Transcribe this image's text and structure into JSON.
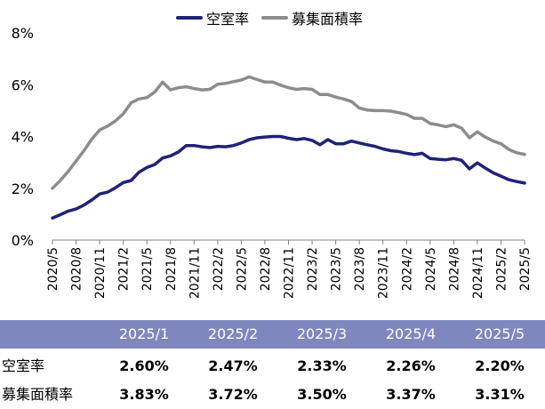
{
  "chart_data": {
    "type": "line",
    "title": "",
    "xlabel": "",
    "ylabel": "",
    "ylim": [
      0,
      8
    ],
    "y_ticks": [
      "0%",
      "2%",
      "4%",
      "6%",
      "8%"
    ],
    "grid": false,
    "legend_position": "top",
    "x_tick_labels": [
      "2020/5",
      "2020/8",
      "2020/11",
      "2021/2",
      "2021/5",
      "2021/8",
      "2021/11",
      "2022/2",
      "2022/5",
      "2022/8",
      "2022/11",
      "2023/2",
      "2023/5",
      "2023/8",
      "2023/11",
      "2024/2",
      "2024/5",
      "2024/8",
      "2024/11",
      "2025/2",
      "2025/5"
    ],
    "x": [
      "2020/5",
      "2020/6",
      "2020/7",
      "2020/8",
      "2020/9",
      "2020/10",
      "2020/11",
      "2020/12",
      "2021/1",
      "2021/2",
      "2021/3",
      "2021/4",
      "2021/5",
      "2021/6",
      "2021/7",
      "2021/8",
      "2021/9",
      "2021/10",
      "2021/11",
      "2021/12",
      "2022/1",
      "2022/2",
      "2022/3",
      "2022/4",
      "2022/5",
      "2022/6",
      "2022/7",
      "2022/8",
      "2022/9",
      "2022/10",
      "2022/11",
      "2022/12",
      "2023/1",
      "2023/2",
      "2023/3",
      "2023/4",
      "2023/5",
      "2023/6",
      "2023/7",
      "2023/8",
      "2023/9",
      "2023/10",
      "2023/11",
      "2023/12",
      "2024/1",
      "2024/2",
      "2024/3",
      "2024/4",
      "2024/5",
      "2024/6",
      "2024/7",
      "2024/8",
      "2024/9",
      "2024/10",
      "2024/11",
      "2024/12",
      "2025/1",
      "2025/2",
      "2025/3",
      "2025/4",
      "2025/5"
    ],
    "series": [
      {
        "name": "空室率",
        "color": "#1f2277",
        "values": [
          0.85,
          0.98,
          1.12,
          1.2,
          1.35,
          1.55,
          1.78,
          1.85,
          2.02,
          2.22,
          2.3,
          2.62,
          2.8,
          2.92,
          3.17,
          3.25,
          3.4,
          3.65,
          3.65,
          3.6,
          3.57,
          3.62,
          3.6,
          3.65,
          3.75,
          3.88,
          3.95,
          3.98,
          4.0,
          4.0,
          3.93,
          3.88,
          3.92,
          3.85,
          3.68,
          3.88,
          3.72,
          3.72,
          3.82,
          3.75,
          3.68,
          3.62,
          3.52,
          3.45,
          3.42,
          3.35,
          3.3,
          3.35,
          3.15,
          3.12,
          3.1,
          3.15,
          3.08,
          2.75,
          2.98,
          2.78,
          2.6,
          2.47,
          2.33,
          2.26,
          2.2
        ]
      },
      {
        "name": "募集面積率",
        "color": "#8c8c8c",
        "values": [
          2.0,
          2.3,
          2.65,
          3.05,
          3.45,
          3.9,
          4.25,
          4.4,
          4.6,
          4.88,
          5.3,
          5.45,
          5.5,
          5.72,
          6.1,
          5.8,
          5.88,
          5.92,
          5.85,
          5.8,
          5.82,
          6.02,
          6.05,
          6.12,
          6.18,
          6.3,
          6.2,
          6.1,
          6.1,
          5.98,
          5.88,
          5.82,
          5.85,
          5.82,
          5.62,
          5.62,
          5.52,
          5.45,
          5.35,
          5.1,
          5.02,
          5.0,
          5.0,
          4.98,
          4.92,
          4.85,
          4.7,
          4.7,
          4.5,
          4.45,
          4.38,
          4.45,
          4.32,
          3.95,
          4.18,
          3.98,
          3.83,
          3.72,
          3.5,
          3.37,
          3.31
        ]
      }
    ]
  },
  "legend": [
    {
      "label": "空室率",
      "color": "#1f2277"
    },
    {
      "label": "募集面積率",
      "color": "#8c8c8c"
    }
  ],
  "table": {
    "header_color": "#7f87bf",
    "columns": [
      "2025/1",
      "2025/2",
      "2025/3",
      "2025/4",
      "2025/5"
    ],
    "rows": [
      {
        "label": "空室率",
        "values": [
          "2.60%",
          "2.47%",
          "2.33%",
          "2.26%",
          "2.20%"
        ]
      },
      {
        "label": "募集面積率",
        "values": [
          "3.83%",
          "3.72%",
          "3.50%",
          "3.37%",
          "3.31%"
        ]
      }
    ]
  }
}
